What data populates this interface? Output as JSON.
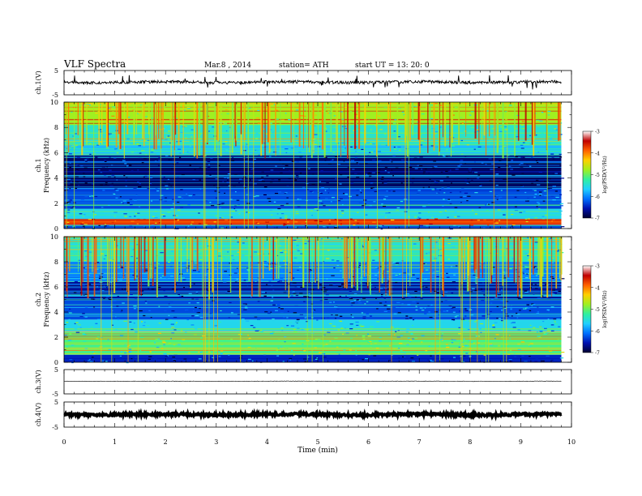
{
  "header": {
    "title": "VLF  Spectra",
    "date": "Mar.8  , 2014",
    "station": "station= ATH",
    "start": "start  UT =   13: 20: 0"
  },
  "colors": {
    "spectrogram_scale": [
      "#000030",
      "#0010b0",
      "#0070ff",
      "#20d0ff",
      "#30f0a0",
      "#a0f020",
      "#ffd000",
      "#ff6000",
      "#c00000",
      "#ffffff"
    ],
    "trace": "#000000"
  },
  "chart_data": [
    {
      "type": "line",
      "panel": "ch1-waveform",
      "ylabel": "ch.1(V)",
      "ylim": [
        -5,
        5
      ],
      "y_ticks": [
        "5",
        "-5"
      ],
      "xlim": [
        0,
        10
      ],
      "data_end_min": 9.8,
      "baseline_v": 0.2,
      "noise_amplitude_v": 0.6
    },
    {
      "type": "heatmap",
      "panel": "ch1-spectrogram",
      "ylabel_line1": "ch.1",
      "ylabel_line2": "Frequency  (kHz)",
      "ylim": [
        0,
        10
      ],
      "y_ticks": [
        "0",
        "2",
        "4",
        "6",
        "8",
        "10"
      ],
      "xlim": [
        0,
        10
      ],
      "data_end_min": 9.8,
      "colorbar": {
        "label": "log(PSD(V²/Hz)",
        "ticks": [
          "-3",
          "-4",
          "-5",
          "-6",
          "-7"
        ],
        "range": [
          -7,
          -3
        ]
      },
      "bands": [
        {
          "f_lo": 0.0,
          "f_hi": 0.3,
          "level": -6.2
        },
        {
          "f_lo": 0.3,
          "f_hi": 0.8,
          "level": -3.4
        },
        {
          "f_lo": 0.8,
          "f_hi": 1.6,
          "level": -5.4
        },
        {
          "f_lo": 1.6,
          "f_hi": 3.2,
          "level": -6.2
        },
        {
          "f_lo": 3.2,
          "f_hi": 5.8,
          "level": -6.8
        },
        {
          "f_lo": 5.8,
          "f_hi": 6.6,
          "level": -5.6
        },
        {
          "f_lo": 6.6,
          "f_hi": 8.2,
          "level": -5.2
        },
        {
          "f_lo": 8.2,
          "f_hi": 10.0,
          "level": -4.5
        }
      ]
    },
    {
      "type": "heatmap",
      "panel": "ch2-spectrogram",
      "ylabel_line1": "ch.2",
      "ylabel_line2": "Frequency  (kHz)",
      "ylim": [
        0,
        10
      ],
      "y_ticks": [
        "0",
        "2",
        "4",
        "6",
        "8",
        "10"
      ],
      "xlim": [
        0,
        10
      ],
      "data_end_min": 9.8,
      "colorbar": {
        "label": "log(PSD(V²/Hz)",
        "ticks": [
          "-3",
          "-4",
          "-5",
          "-6",
          "-7"
        ],
        "range": [
          -7,
          -3
        ]
      },
      "bands": [
        {
          "f_lo": 0.0,
          "f_hi": 0.6,
          "level": -6.4
        },
        {
          "f_lo": 0.6,
          "f_hi": 2.4,
          "level": -4.9
        },
        {
          "f_lo": 2.4,
          "f_hi": 3.4,
          "level": -5.4
        },
        {
          "f_lo": 3.4,
          "f_hi": 5.0,
          "level": -6.2
        },
        {
          "f_lo": 5.0,
          "f_hi": 6.4,
          "level": -6.6
        },
        {
          "f_lo": 6.4,
          "f_hi": 8.0,
          "level": -5.9
        },
        {
          "f_lo": 8.0,
          "f_hi": 10.0,
          "level": -5.2
        }
      ]
    },
    {
      "type": "line",
      "panel": "ch3-waveform",
      "ylabel": "ch.3(V)",
      "ylim": [
        -5,
        5
      ],
      "y_ticks": [
        "5",
        "-5"
      ],
      "xlim": [
        0,
        10
      ],
      "data_end_min": 9.8,
      "baseline_v": 0.2,
      "noise_amplitude_v": 0.1
    },
    {
      "type": "line",
      "panel": "ch4-waveform",
      "ylabel": "ch.4(V)",
      "ylim": [
        -5,
        5
      ],
      "y_ticks": [
        "5",
        "-5"
      ],
      "xlim": [
        0,
        10
      ],
      "data_end_min": 9.8,
      "baseline_v": 0.0,
      "noise_amplitude_v": 0.5
    }
  ],
  "x_axis": {
    "label": "Time  (min)",
    "ticks": [
      "0",
      "1",
      "2",
      "3",
      "4",
      "5",
      "6",
      "7",
      "8",
      "9",
      "10"
    ]
  }
}
